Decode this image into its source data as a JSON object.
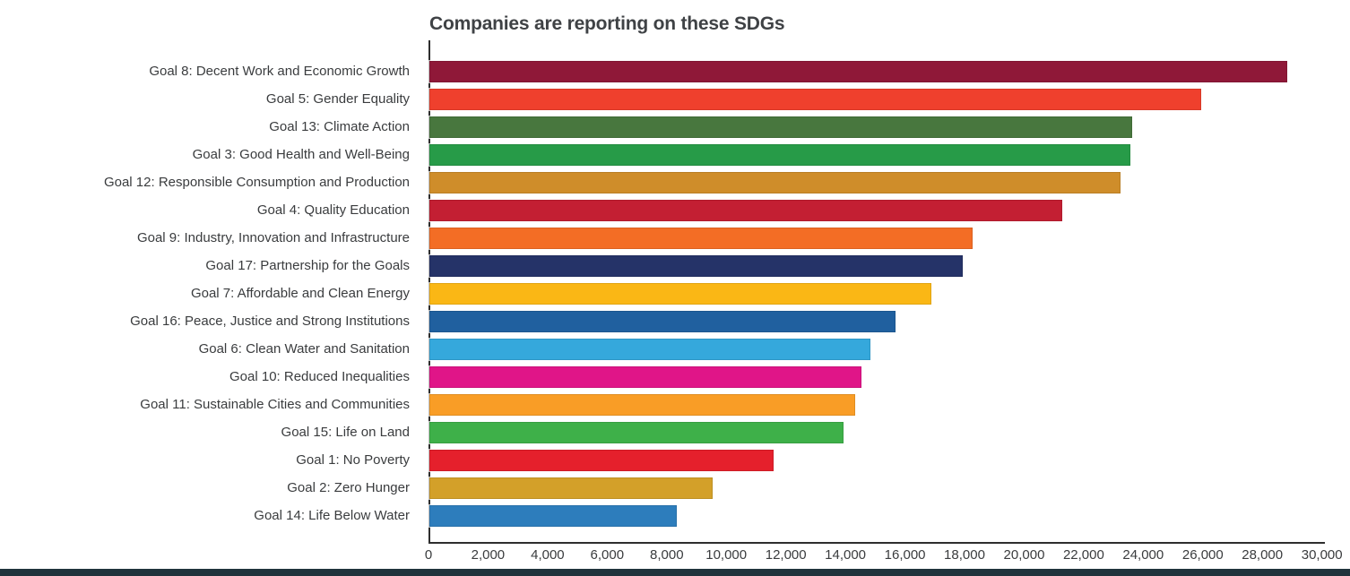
{
  "title": "Companies are reporting on these SDGs",
  "chart_data": {
    "type": "bar",
    "orientation": "horizontal",
    "title": "Companies are reporting on these SDGs",
    "xlabel": "",
    "ylabel": "",
    "xlim": [
      0,
      30100
    ],
    "grid": false,
    "legend": false,
    "categories": [
      "Goal 8: Decent Work and Economic Growth",
      "Goal 5: Gender Equality",
      "Goal 13: Climate Action",
      "Goal 3: Good Health and Well-Being",
      "Goal 12: Responsible Consumption and Production",
      "Goal 4: Quality Education",
      "Goal 9: Industry, Innovation and Infrastructure",
      "Goal 17: Partnership for the Goals",
      "Goal 7: Affordable and Clean Energy",
      "Goal 16: Peace, Justice and Strong Institutions",
      "Goal 6: Clean Water and Sanitation",
      "Goal 10: Reduced Inequalities",
      "Goal 11: Sustainable Cities and Communities",
      "Goal 15: Life on Land",
      "Goal 1: No Poverty",
      "Goal 2: Zero Hunger",
      "Goal 14: Life Below Water"
    ],
    "values": [
      28800,
      25900,
      23600,
      23550,
      23200,
      21250,
      18250,
      17900,
      16850,
      15650,
      14800,
      14500,
      14300,
      13900,
      11550,
      9500,
      8300
    ],
    "bar_colors": [
      "#8F1838",
      "#EF402D",
      "#48773E",
      "#279B48",
      "#CF8D2A",
      "#C31F33",
      "#F36D25",
      "#253368",
      "#FAB715",
      "#20609F",
      "#35A8DC",
      "#E01588",
      "#F99D26",
      "#3EB049",
      "#E5202C",
      "#D3A029",
      "#2D7DBC"
    ],
    "x_ticks": {
      "values": [
        0,
        2000,
        4000,
        6000,
        8000,
        10000,
        12000,
        14000,
        16000,
        18000,
        20000,
        22000,
        24000,
        26000,
        28000,
        30000
      ],
      "labels": [
        "0",
        "2,000",
        "4,000",
        "6,000",
        "8,000",
        "10,000",
        "12,000",
        "14,000",
        "16,000",
        "18,000",
        "20,000",
        "22,000",
        "24,000",
        "26,000",
        "28,000",
        "30,000"
      ]
    }
  },
  "colors": {
    "title_text": "#3f4245",
    "label_text": "#3a3c3e",
    "axis_line": "#2e2e2e",
    "bottom_accent": "#20333C"
  }
}
